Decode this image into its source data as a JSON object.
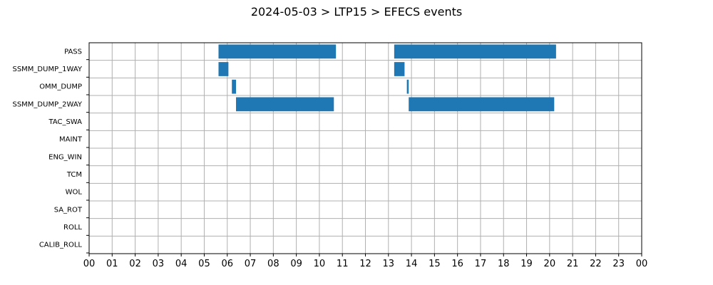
{
  "chart_data": {
    "type": "bar",
    "orientation": "horizontal",
    "title": "2024-05-03 > LTP15 > EFECS events",
    "xlabel": "",
    "ylabel": "",
    "x_tick_labels": [
      "00",
      "01",
      "02",
      "03",
      "04",
      "05",
      "06",
      "07",
      "08",
      "09",
      "10",
      "11",
      "12",
      "13",
      "14",
      "15",
      "16",
      "17",
      "18",
      "19",
      "20",
      "21",
      "22",
      "23",
      "00"
    ],
    "xlim_hours": [
      0,
      24
    ],
    "categories": [
      "PASS",
      "SSMM_DUMP_1WAY",
      "OMM_DUMP",
      "SSMM_DUMP_2WAY",
      "TAC_SWA",
      "MAINT",
      "ENG_WIN",
      "TCM",
      "WOL",
      "SA_ROT",
      "ROLL",
      "CALIB_ROLL"
    ],
    "grid": true,
    "bar_color": "#1f77b4",
    "events": [
      {
        "category": "PASS",
        "start_hour": 5.62,
        "end_hour": 10.72
      },
      {
        "category": "PASS",
        "start_hour": 13.25,
        "end_hour": 20.28
      },
      {
        "category": "SSMM_DUMP_1WAY",
        "start_hour": 5.62,
        "end_hour": 6.05
      },
      {
        "category": "SSMM_DUMP_1WAY",
        "start_hour": 13.25,
        "end_hour": 13.7
      },
      {
        "category": "OMM_DUMP",
        "start_hour": 6.2,
        "end_hour": 6.38
      },
      {
        "category": "OMM_DUMP",
        "start_hour": 13.8,
        "end_hour": 13.88
      },
      {
        "category": "SSMM_DUMP_2WAY",
        "start_hour": 6.38,
        "end_hour": 10.63
      },
      {
        "category": "SSMM_DUMP_2WAY",
        "start_hour": 13.88,
        "end_hour": 20.2
      }
    ]
  }
}
